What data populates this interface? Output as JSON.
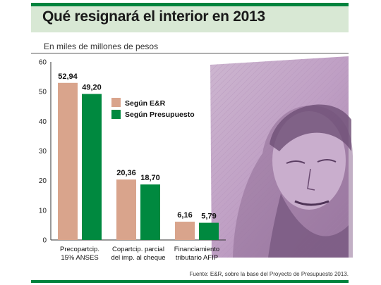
{
  "header": {
    "title": "Qué resignará el interior en 2013",
    "subtitle": "En miles de millones de pesos"
  },
  "footer": {
    "source": "Fuente: E&R, sobre la base del Proyecto de Presupuesto 2013."
  },
  "chart_data": {
    "type": "bar",
    "categories": [
      [
        "Precopartcip.",
        "15% ANSES"
      ],
      [
        "Copartcip. parcial",
        "del imp. al cheque"
      ],
      [
        "Financiamiento",
        "tributario AFIP"
      ]
    ],
    "series": [
      {
        "name": "Según E&R",
        "values": [
          52.94,
          20.36,
          6.16
        ],
        "labels": [
          "52,94",
          "20,36",
          "6,16"
        ],
        "color": "#d9a48c"
      },
      {
        "name": "Según Presupuesto",
        "values": [
          49.2,
          18.7,
          5.79
        ],
        "labels": [
          "49,20",
          "18,70",
          "5,79"
        ],
        "color": "#00893f"
      }
    ],
    "yticks": [
      0,
      10,
      20,
      30,
      40,
      50,
      60
    ],
    "ylim": [
      0,
      60
    ],
    "grid": false,
    "legend": "right of the first group",
    "background_image": "banknote portrait (Argentine peso, pink-purple)"
  }
}
